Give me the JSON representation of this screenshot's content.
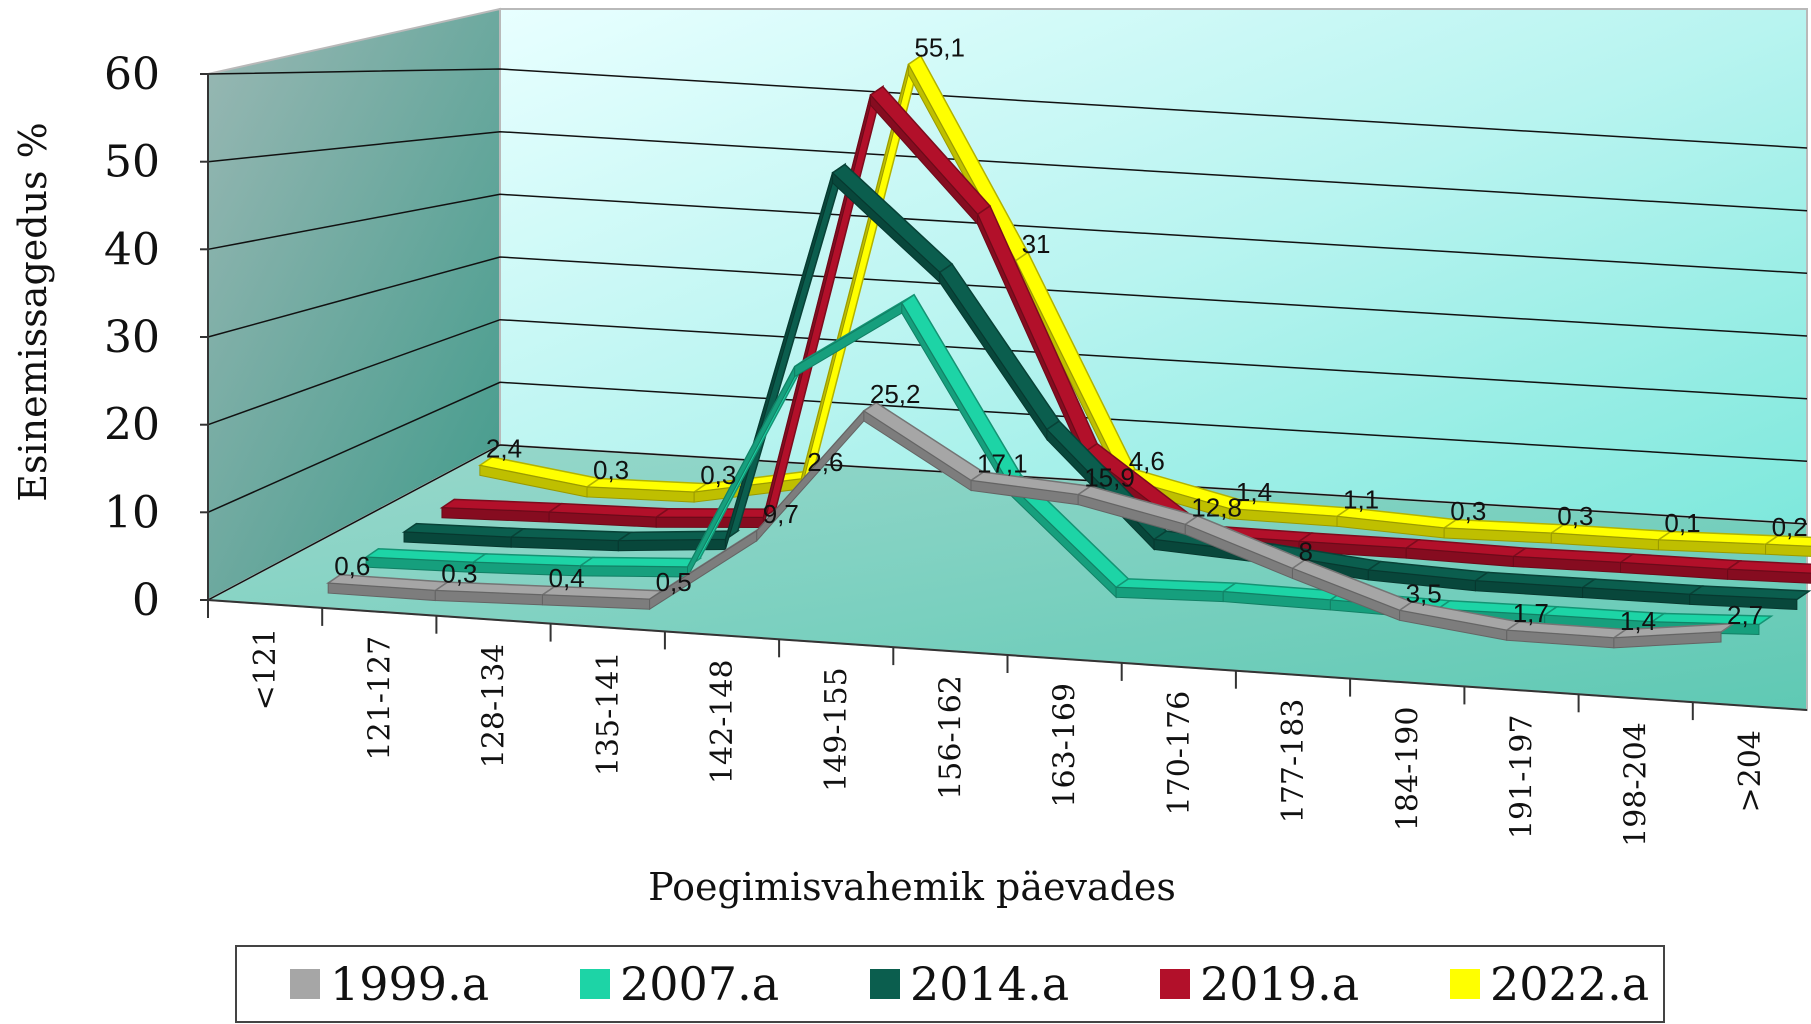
{
  "chart_data": {
    "type": "line",
    "title": "",
    "xlabel": "Poegimisvahemik päevades",
    "ylabel": "Esinemissagedus %",
    "ylim": [
      0,
      60
    ],
    "yticks": [
      0,
      10,
      20,
      30,
      40,
      50,
      60
    ],
    "categories": [
      "<121",
      "121-127",
      "128-134",
      "135-141",
      "142-148",
      "149-155",
      "156-162",
      "163-169",
      "170-176",
      "177-183",
      "184-190",
      "191-197",
      "198-204",
      ">204"
    ],
    "grid": true,
    "legend_position": "bottom",
    "series": [
      {
        "name": "1999.a",
        "color": "#a6a6a6",
        "values": [
          0.6,
          0.3,
          0.4,
          0.5,
          9.7,
          25.2,
          17.1,
          15.9,
          12.8,
          8,
          3.5,
          1.7,
          1.4,
          2.7
        ],
        "labels": [
          "0,6",
          "0,3",
          "0,4",
          "0,5",
          "9,7",
          "25,2",
          "17,1",
          "15,9",
          "12,8",
          "8",
          "3,5",
          "1,7",
          "1,4",
          "2,7"
        ]
      },
      {
        "name": "2007.a",
        "color": "#1dd4a6",
        "values": [
          0.6,
          0.6,
          0.8,
          1.3,
          27,
          35.4,
          13.5,
          1.3,
          1.4,
          1.0,
          0.5,
          0.4,
          0.2,
          0.5
        ],
        "labels": []
      },
      {
        "name": "2014.a",
        "color": "#0b5e4e",
        "values": [
          0.5,
          0.5,
          0.7,
          1.5,
          48,
          36,
          17,
          4,
          3,
          1.5,
          0.8,
          0.6,
          0.4,
          0.4
        ],
        "labels": []
      },
      {
        "name": "2019.a",
        "color": "#b2102a",
        "values": [
          0.3,
          0.4,
          0.4,
          1.0,
          54.5,
          40,
          11,
          1.5,
          1.2,
          1.0,
          0.6,
          0.5,
          0.3,
          0.3
        ],
        "labels": []
      },
      {
        "name": "2022.a",
        "color": "#ffff00",
        "values": [
          2.4,
          0.3,
          0.3,
          2.6,
          55.1,
          31,
          4.6,
          1.4,
          1.1,
          0.3,
          0.3,
          0.1,
          0.2,
          0.2
        ],
        "labels": [
          "2,4",
          "0,3",
          "0,3",
          "2,6",
          "55,1",
          "31",
          "4,6",
          "1,4",
          "1,1",
          "0,3",
          "0,3",
          "0,1",
          "0,2",
          "0,2"
        ]
      }
    ]
  }
}
